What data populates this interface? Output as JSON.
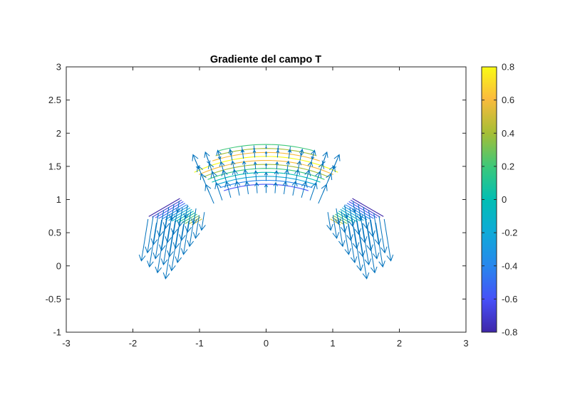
{
  "chart_data": {
    "type": "contour-quiver",
    "title": "Gradiente del campo T",
    "xlim": [
      -3,
      3
    ],
    "ylim": [
      -1,
      3
    ],
    "xticks": [
      -3,
      -2,
      -1,
      0,
      1,
      2,
      3
    ],
    "xtick_labels": [
      "-3",
      "-2",
      "-1",
      "0",
      "1",
      "2",
      "3"
    ],
    "yticks": [
      -1,
      -0.5,
      0,
      0.5,
      1,
      1.5,
      2,
      2.5,
      3
    ],
    "ytick_labels": [
      "-1",
      "-0.5",
      "0",
      "0.5",
      "1",
      "1.5",
      "2",
      "2.5",
      "3"
    ],
    "colorbar": {
      "range": [
        -0.8,
        0.8
      ],
      "ticks": [
        -0.8,
        -0.6,
        -0.4,
        -0.2,
        0,
        0.2,
        0.4,
        0.6,
        0.8
      ],
      "tick_labels": [
        "-0.8",
        "-0.6",
        "-0.4",
        "-0.2",
        "0",
        "0.2",
        "0.4",
        "0.6",
        "0.8"
      ],
      "colormap": "parula"
    },
    "domain": {
      "arch": {
        "center": [
          0,
          -0.9
        ],
        "r_inner": 1.95,
        "r_outer": 2.9,
        "theta_deg": [
          65,
          115
        ]
      },
      "left_arm": {
        "origin": [
          -1.3,
          1.05
        ],
        "u_dir": [
          -0.6,
          -0.35
        ],
        "v_dir": [
          0.45,
          -0.2
        ],
        "u_range": [
          0,
          0.95
        ],
        "v_range": [
          0,
          1.35
        ]
      },
      "right_arm": {
        "origin": [
          1.3,
          1.05
        ],
        "u_dir": [
          0.6,
          -0.35
        ],
        "v_dir": [
          -0.45,
          -0.2
        ],
        "u_range": [
          0,
          0.95
        ],
        "v_range": [
          0,
          1.35
        ]
      }
    },
    "contour_levels": [
      -0.8,
      -0.6,
      -0.4,
      -0.2,
      0,
      0.2,
      0.4,
      0.6,
      0.8
    ],
    "quiver_color": "#0072bd",
    "grid": false,
    "legend": "none"
  }
}
